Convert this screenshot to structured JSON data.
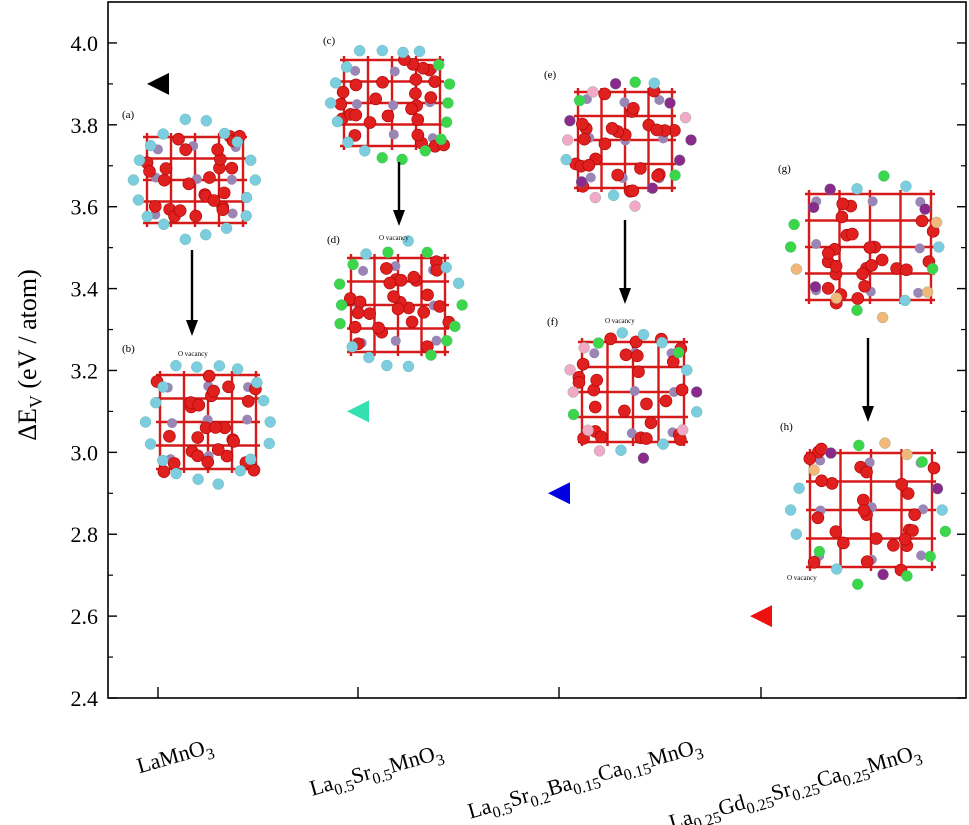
{
  "chart_data": {
    "type": "scatter",
    "ylabel": "ΔE_V (eV / atom)",
    "ylim": [
      2.4,
      4.1
    ],
    "yticks": [
      "2.4",
      "2.6",
      "2.8",
      "3.0",
      "3.2",
      "3.4",
      "3.6",
      "3.8",
      "4.0"
    ],
    "categories": [
      "LaMnO3",
      "La0.5Sr0.5MnO3",
      "La0.5Sr0.2Ba0.15Ca0.15MnO3",
      "La0.25Gd0.25Sr0.25Ca0.25MnO3"
    ],
    "points": [
      {
        "category": "LaMnO3",
        "value": 3.9,
        "color": "#000000"
      },
      {
        "category": "La0.5Sr0.5MnO3",
        "value": 3.1,
        "color": "#33e0b0"
      },
      {
        "category": "La0.5Sr0.2Ba0.15Ca0.15MnO3",
        "value": 2.9,
        "color": "#0000e0"
      },
      {
        "category": "La0.25Gd0.25Sr0.25Ca0.25MnO3",
        "value": 2.6,
        "color": "#ee1111"
      }
    ],
    "marker": "left-triangle",
    "panels": [
      "(a)",
      "(b)",
      "(c)",
      "(d)",
      "(e)",
      "(f)",
      "(g)",
      "(h)"
    ],
    "vacancy_label": "O vacancy"
  }
}
